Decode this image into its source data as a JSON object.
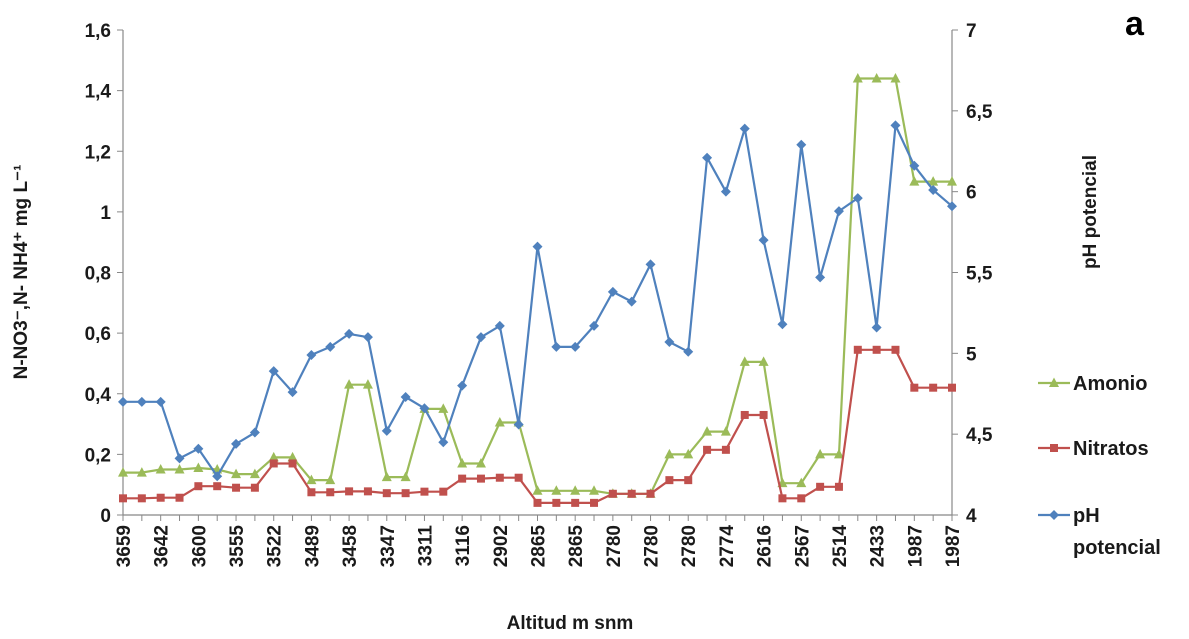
{
  "chart_data": {
    "type": "line",
    "panel_label": "a",
    "xlabel": "Altitud m snm",
    "ylabel_left": "N-NO3⁻,N- NH4⁺ mg L⁻¹",
    "ylabel_right": "pH potencial",
    "ylim_left": [
      0,
      1.6
    ],
    "ylim_right": [
      4,
      7
    ],
    "yticks_left": [
      "0",
      "0,2",
      "0,4",
      "0,6",
      "0,8",
      "1",
      "1,2",
      "1,4",
      "1,6"
    ],
    "yticks_right": [
      "4",
      "4,5",
      "5",
      "5,5",
      "6",
      "6,5",
      "7"
    ],
    "x_tick_labels": [
      "3659",
      "3642",
      "3600",
      "3555",
      "3522",
      "3489",
      "3458",
      "3347",
      "3311",
      "3116",
      "2902",
      "2865",
      "2865",
      "2780",
      "2780",
      "2780",
      "2774",
      "2616",
      "2567",
      "2514",
      "2433",
      "1987",
      "1987"
    ],
    "legend_position": "right",
    "grid": false,
    "series": [
      {
        "name": "Amonio",
        "axis": "left",
        "color": "#9bbb59",
        "marker": "triangle",
        "values": [
          0.14,
          0.14,
          0.15,
          0.15,
          0.155,
          0.15,
          0.135,
          0.135,
          0.19,
          0.19,
          0.115,
          0.115,
          0.43,
          0.43,
          0.125,
          0.125,
          0.35,
          0.35,
          0.17,
          0.17,
          0.305,
          0.305,
          0.08,
          0.08,
          0.08,
          0.08,
          0.07,
          0.07,
          0.07,
          0.2,
          0.2,
          0.275,
          0.275,
          0.505,
          0.505,
          0.105,
          0.105,
          0.2,
          0.2,
          1.44,
          1.44,
          1.44,
          1.1,
          1.1,
          1.1
        ]
      },
      {
        "name": "Nitratos",
        "axis": "left",
        "color": "#c0504d",
        "marker": "square",
        "values": [
          0.055,
          0.055,
          0.057,
          0.057,
          0.095,
          0.095,
          0.09,
          0.09,
          0.17,
          0.17,
          0.075,
          0.075,
          0.078,
          0.078,
          0.072,
          0.072,
          0.077,
          0.077,
          0.12,
          0.12,
          0.123,
          0.123,
          0.04,
          0.04,
          0.04,
          0.04,
          0.07,
          0.07,
          0.07,
          0.115,
          0.115,
          0.215,
          0.215,
          0.33,
          0.33,
          0.055,
          0.055,
          0.093,
          0.093,
          0.545,
          0.545,
          0.545,
          0.42,
          0.42,
          0.42
        ]
      },
      {
        "name": "pH potencial",
        "axis": "right",
        "color": "#4f81bd",
        "marker": "diamond",
        "values": [
          4.7,
          4.7,
          4.7,
          4.35,
          4.41,
          4.24,
          4.44,
          4.51,
          4.89,
          4.76,
          4.99,
          5.04,
          5.12,
          5.1,
          4.52,
          4.73,
          4.66,
          4.45,
          4.8,
          5.1,
          5.17,
          4.56,
          5.66,
          5.04,
          5.04,
          5.17,
          5.38,
          5.32,
          5.55,
          5.07,
          5.01,
          6.21,
          6.0,
          6.39,
          5.7,
          5.18,
          6.29,
          5.47,
          5.88,
          5.96,
          5.16,
          6.41,
          6.16,
          6.01,
          5.91
        ]
      }
    ]
  }
}
